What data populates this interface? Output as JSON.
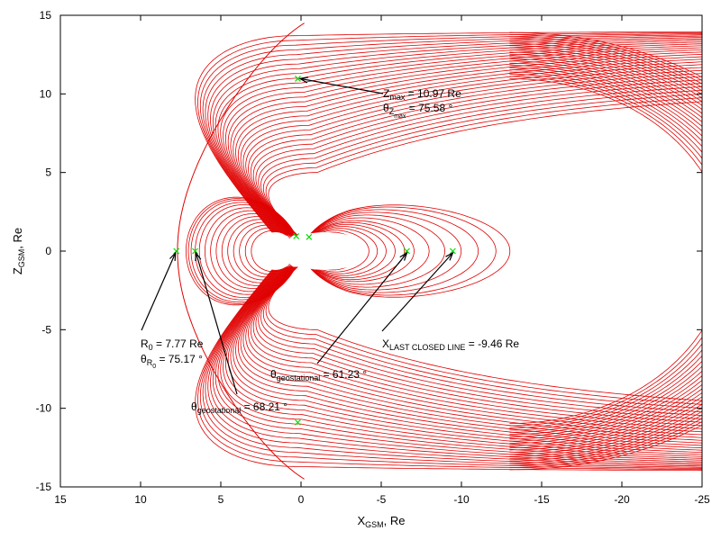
{
  "chart_data": {
    "type": "line",
    "title": "",
    "xlabel": {
      "main": "X",
      "sub": "GSM",
      "rest": ", Re"
    },
    "ylabel": {
      "main": "Z",
      "sub": "GSM",
      "rest": ", Re"
    },
    "xlim": [
      15,
      -25
    ],
    "ylim": [
      -15,
      15
    ],
    "x_ticks": [
      15,
      10,
      5,
      0,
      -5,
      -10,
      -15,
      -20,
      -25
    ],
    "y_ticks": [
      15,
      10,
      5,
      0,
      -5,
      -10,
      -15
    ],
    "grid": false,
    "legend": "none",
    "series": [
      {
        "color": "#e00000",
        "description_hidden": true
      }
    ],
    "markers": [
      {
        "x": 7.77,
        "y": 0
      },
      {
        "x": 6.6,
        "y": 0
      },
      {
        "x": -6.6,
        "y": 0
      },
      {
        "x": -9.46,
        "y": 0
      },
      {
        "x": 0.2,
        "y": 10.97
      },
      {
        "x": 0.2,
        "y": -10.9
      },
      {
        "x": 0.3,
        "y": 0.95
      },
      {
        "x": -0.5,
        "y": 0.9
      }
    ],
    "marker_color": "#00dd00",
    "field_line_color": "#e00000",
    "annotations": {
      "zmax_value": "= 10.97 Re",
      "theta_zmax_value": "= 75.58 °",
      "r0_value": "= 7.77 Re",
      "theta_r0_value": "= 75.17 °",
      "theta_geo_night_value": "= 61.23 °",
      "theta_geo_day_value": "= 68.21 °",
      "xlast_value": "= -9.46 Re",
      "sub_max": "max",
      "sub_z": "Z",
      "sub_r": "R",
      "sub_0": "0",
      "sub_geostational": "geostational",
      "sub_last_closed": "LAST CLOSED LINE",
      "letter_z": "Z",
      "letter_r": "R",
      "letter_x": "X",
      "letter_theta": "θ"
    }
  }
}
